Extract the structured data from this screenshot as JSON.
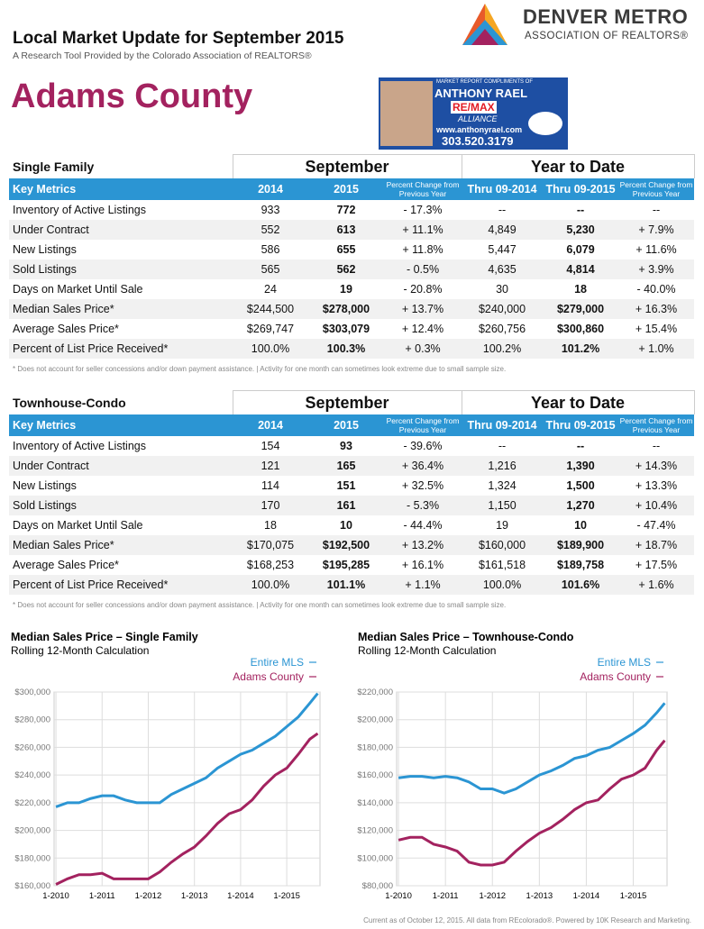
{
  "header": {
    "title": "Local Market Update for September 2015",
    "subtitle": "A Research Tool Provided by the Colorado Association of REALTORS®",
    "county": "Adams County",
    "org_name": "DENVER METRO",
    "org_sub": "ASSOCIATION OF REALTORS®"
  },
  "ad": {
    "tagline": "MARKET REPORT COMPLIMENTS OF",
    "agent": "ANTHONY RAEL",
    "brand": "RE/MAX",
    "office": "ALLIANCE",
    "web": "www.anthonyrael.com",
    "phone": "303.520.3179"
  },
  "sections": [
    {
      "title": "Single Family",
      "periods": [
        "September",
        "Year to Date"
      ],
      "columns": [
        "Key Metrics",
        "2014",
        "2015",
        "Percent Change from Previous Year",
        "Thru 09-2014",
        "Thru 09-2015",
        "Percent Change from Previous Year"
      ],
      "rows": [
        [
          "Inventory of Active Listings",
          "933",
          "772",
          "- 17.3%",
          "--",
          "--",
          "--"
        ],
        [
          "Under Contract",
          "552",
          "613",
          "+ 11.1%",
          "4,849",
          "5,230",
          "+ 7.9%"
        ],
        [
          "New Listings",
          "586",
          "655",
          "+ 11.8%",
          "5,447",
          "6,079",
          "+ 11.6%"
        ],
        [
          "Sold Listings",
          "565",
          "562",
          "- 0.5%",
          "4,635",
          "4,814",
          "+ 3.9%"
        ],
        [
          "Days on Market Until Sale",
          "24",
          "19",
          "- 20.8%",
          "30",
          "18",
          "- 40.0%"
        ],
        [
          "Median Sales Price*",
          "$244,500",
          "$278,000",
          "+ 13.7%",
          "$240,000",
          "$279,000",
          "+ 16.3%"
        ],
        [
          "Average Sales Price*",
          "$269,747",
          "$303,079",
          "+ 12.4%",
          "$260,756",
          "$300,860",
          "+ 15.4%"
        ],
        [
          "Percent of List Price Received*",
          "100.0%",
          "100.3%",
          "+ 0.3%",
          "100.2%",
          "101.2%",
          "+ 1.0%"
        ]
      ],
      "footnote": "* Does not account for seller concessions and/or down payment assistance.  |  Activity for one month can sometimes look extreme due to small sample size."
    },
    {
      "title": "Townhouse-Condo",
      "periods": [
        "September",
        "Year to Date"
      ],
      "columns": [
        "Key Metrics",
        "2014",
        "2015",
        "Percent Change from Previous Year",
        "Thru 09-2014",
        "Thru 09-2015",
        "Percent Change from Previous Year"
      ],
      "rows": [
        [
          "Inventory of Active Listings",
          "154",
          "93",
          "- 39.6%",
          "--",
          "--",
          "--"
        ],
        [
          "Under Contract",
          "121",
          "165",
          "+ 36.4%",
          "1,216",
          "1,390",
          "+ 14.3%"
        ],
        [
          "New Listings",
          "114",
          "151",
          "+ 32.5%",
          "1,324",
          "1,500",
          "+ 13.3%"
        ],
        [
          "Sold Listings",
          "170",
          "161",
          "- 5.3%",
          "1,150",
          "1,270",
          "+ 10.4%"
        ],
        [
          "Days on Market Until Sale",
          "18",
          "10",
          "- 44.4%",
          "19",
          "10",
          "- 47.4%"
        ],
        [
          "Median Sales Price*",
          "$170,075",
          "$192,500",
          "+ 13.2%",
          "$160,000",
          "$189,900",
          "+ 18.7%"
        ],
        [
          "Average Sales Price*",
          "$168,253",
          "$195,285",
          "+ 16.1%",
          "$161,518",
          "$189,758",
          "+ 17.5%"
        ],
        [
          "Percent of List Price Received*",
          "100.0%",
          "101.1%",
          "+ 1.1%",
          "100.0%",
          "101.6%",
          "+ 1.6%"
        ]
      ],
      "footnote": "* Does not account for seller concessions and/or down payment assistance.  |  Activity for one month can sometimes look extreme due to small sample size."
    }
  ],
  "chart_data": [
    {
      "type": "line",
      "title": "Median Sales Price – Single Family",
      "subtitle": "Rolling 12-Month Calculation",
      "legend": "top-right",
      "grid": true,
      "x": [
        2010,
        2010.25,
        2010.5,
        2010.75,
        2011,
        2011.25,
        2011.5,
        2011.75,
        2012,
        2012.25,
        2012.5,
        2012.75,
        2013,
        2013.25,
        2013.5,
        2013.75,
        2014,
        2014.25,
        2014.5,
        2014.75,
        2015,
        2015.25,
        2015.5,
        2015.67
      ],
      "xlim": [
        2009.96,
        2015.72
      ],
      "xticks": [
        {
          "value": 2010,
          "label": "1-2010"
        },
        {
          "value": 2011,
          "label": "1-2011"
        },
        {
          "value": 2012,
          "label": "1-2012"
        },
        {
          "value": 2013,
          "label": "1-2013"
        },
        {
          "value": 2014,
          "label": "1-2014"
        },
        {
          "value": 2015,
          "label": "1-2015"
        }
      ],
      "ylim": [
        160000,
        300000
      ],
      "yticks": [
        {
          "value": 160000,
          "label": "$160,000"
        },
        {
          "value": 180000,
          "label": "$180,000"
        },
        {
          "value": 200000,
          "label": "$200,000"
        },
        {
          "value": 220000,
          "label": "$220,000"
        },
        {
          "value": 240000,
          "label": "$240,000"
        },
        {
          "value": 260000,
          "label": "$260,000"
        },
        {
          "value": 280000,
          "label": "$280,000"
        },
        {
          "value": 300000,
          "label": "$300,000"
        }
      ],
      "series": [
        {
          "name": "Entire MLS",
          "color": "#2b95d3",
          "values": [
            217000,
            220000,
            220000,
            223000,
            225000,
            225000,
            222000,
            220000,
            220000,
            220000,
            226000,
            230000,
            234000,
            238000,
            245000,
            250000,
            255000,
            258000,
            263000,
            268000,
            275000,
            282000,
            292000,
            299000
          ]
        },
        {
          "name": "Adams County",
          "color": "#a3225f",
          "values": [
            161000,
            165000,
            168000,
            168000,
            169000,
            165000,
            165000,
            165000,
            165000,
            170000,
            177000,
            183000,
            188000,
            196000,
            205000,
            212000,
            215000,
            222000,
            232000,
            240000,
            245000,
            255000,
            266000,
            270000
          ]
        }
      ]
    },
    {
      "type": "line",
      "title": "Median Sales Price – Townhouse-Condo",
      "subtitle": "Rolling 12-Month Calculation",
      "legend": "top-right",
      "grid": true,
      "x": [
        2010,
        2010.25,
        2010.5,
        2010.75,
        2011,
        2011.25,
        2011.5,
        2011.75,
        2012,
        2012.25,
        2012.5,
        2012.75,
        2013,
        2013.25,
        2013.5,
        2013.75,
        2014,
        2014.25,
        2014.5,
        2014.75,
        2015,
        2015.25,
        2015.5,
        2015.67
      ],
      "xlim": [
        2009.96,
        2015.72
      ],
      "xticks": [
        {
          "value": 2010,
          "label": "1-2010"
        },
        {
          "value": 2011,
          "label": "1-2011"
        },
        {
          "value": 2012,
          "label": "1-2012"
        },
        {
          "value": 2013,
          "label": "1-2013"
        },
        {
          "value": 2014,
          "label": "1-2014"
        },
        {
          "value": 2015,
          "label": "1-2015"
        }
      ],
      "ylim": [
        80000,
        220000
      ],
      "yticks": [
        {
          "value": 80000,
          "label": "$80,000"
        },
        {
          "value": 100000,
          "label": "$100,000"
        },
        {
          "value": 120000,
          "label": "$120,000"
        },
        {
          "value": 140000,
          "label": "$140,000"
        },
        {
          "value": 160000,
          "label": "$160,000"
        },
        {
          "value": 180000,
          "label": "$180,000"
        },
        {
          "value": 200000,
          "label": "$200,000"
        },
        {
          "value": 220000,
          "label": "$220,000"
        }
      ],
      "series": [
        {
          "name": "Entire MLS",
          "color": "#2b95d3",
          "values": [
            158000,
            159000,
            159000,
            158000,
            159000,
            158000,
            155000,
            150000,
            150000,
            147000,
            150000,
            155000,
            160000,
            163000,
            167000,
            172000,
            174000,
            178000,
            180000,
            185000,
            190000,
            196000,
            205000,
            212000
          ]
        },
        {
          "name": "Adams County",
          "color": "#a3225f",
          "values": [
            113000,
            115000,
            115000,
            110000,
            108000,
            105000,
            97000,
            95000,
            95000,
            97000,
            105000,
            112000,
            118000,
            122000,
            128000,
            135000,
            140000,
            142000,
            150000,
            157000,
            160000,
            165000,
            178000,
            185000
          ]
        }
      ]
    }
  ],
  "footer": "Current as of October 12, 2015. All data from REcolorado®. Powered by 10K Research and Marketing."
}
